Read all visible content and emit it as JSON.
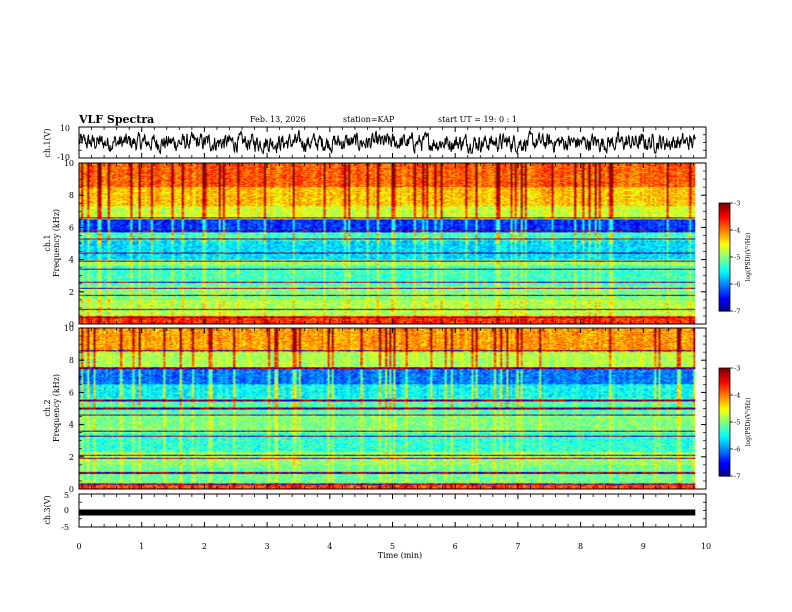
{
  "header": {
    "title": "VLF Spectra",
    "date": "Feb. 13, 2026",
    "station": "station=KAP",
    "start_ut": "start  UT =   19: 0  : 1"
  },
  "chart_data": [
    {
      "type": "line",
      "panel": "waveform-ch1",
      "ylabel": "ch.1(V)",
      "ylim": [
        -10,
        10
      ],
      "yticks": [
        "10",
        "-10"
      ],
      "xlim": [
        0,
        10
      ],
      "data_extent_min": [
        0,
        9.83
      ],
      "description_values": "random noise waveform, amplitude ~ -6..+8 V"
    },
    {
      "type": "heatmap",
      "panel": "spectrogram-ch1",
      "ylabel_line1": "ch.1",
      "ylabel_line2": "Frequency (kHz)",
      "ylim": [
        0,
        10
      ],
      "yticks": [
        "0",
        "2",
        "4",
        "6",
        "8",
        "10"
      ],
      "xlim": [
        0,
        10
      ],
      "data_extent_min": [
        0,
        9.83
      ],
      "colorbar": {
        "label": "log(PSD)(V²/Hz)",
        "range": [
          -7,
          -3
        ],
        "ticks": [
          "-3",
          "-4",
          "-5",
          "-6",
          "-7"
        ]
      },
      "bands": [
        {
          "f": [
            0.0,
            0.5
          ],
          "level": 0.82
        },
        {
          "f": [
            0.5,
            1.5
          ],
          "level": 0.55
        },
        {
          "f": [
            1.5,
            2.4
          ],
          "level": 0.5
        },
        {
          "f": [
            2.4,
            3.6
          ],
          "level": 0.44
        },
        {
          "f": [
            3.6,
            4.0
          ],
          "level": 0.52
        },
        {
          "f": [
            4.0,
            5.2
          ],
          "level": 0.34
        },
        {
          "f": [
            5.2,
            5.7
          ],
          "level": 0.44
        },
        {
          "f": [
            5.7,
            6.5
          ],
          "level": 0.17
        },
        {
          "f": [
            6.5,
            7.3
          ],
          "level": 0.58
        },
        {
          "f": [
            7.3,
            8.5
          ],
          "level": 0.68
        },
        {
          "f": [
            8.5,
            10.0
          ],
          "level": 0.78
        }
      ],
      "lines_khz": [
        0.4,
        0.9,
        1.8,
        2.2,
        2.6,
        3.4,
        3.9,
        4.4,
        5.3,
        5.8,
        6.6
      ]
    },
    {
      "type": "heatmap",
      "panel": "spectrogram-ch2",
      "ylabel_line1": "ch.2",
      "ylabel_line2": "Frequency (kHz)",
      "ylim": [
        0,
        10
      ],
      "yticks": [
        "0",
        "2",
        "4",
        "6",
        "8",
        "10"
      ],
      "xlim": [
        0,
        10
      ],
      "data_extent_min": [
        0,
        9.83
      ],
      "colorbar": {
        "label": "log(PSD)(V²/Hz)",
        "range": [
          -7,
          -3
        ],
        "ticks": [
          "-3",
          "-4",
          "-5",
          "-6",
          "-7"
        ]
      },
      "bands": [
        {
          "f": [
            0.0,
            0.4
          ],
          "level": 0.8
        },
        {
          "f": [
            0.4,
            1.5
          ],
          "level": 0.48
        },
        {
          "f": [
            1.5,
            2.3
          ],
          "level": 0.52
        },
        {
          "f": [
            2.3,
            3.5
          ],
          "level": 0.42
        },
        {
          "f": [
            3.5,
            4.6
          ],
          "level": 0.5
        },
        {
          "f": [
            4.6,
            5.6
          ],
          "level": 0.46
        },
        {
          "f": [
            5.6,
            6.5
          ],
          "level": 0.38
        },
        {
          "f": [
            6.5,
            7.5
          ],
          "level": 0.24
        },
        {
          "f": [
            7.5,
            8.5
          ],
          "level": 0.55
        },
        {
          "f": [
            8.5,
            10.0
          ],
          "level": 0.72
        }
      ],
      "lines_khz": [
        0.3,
        1.0,
        1.9,
        2.1,
        3.3,
        3.6,
        4.6,
        5.0,
        5.5,
        7.5,
        8.6
      ]
    },
    {
      "type": "line",
      "panel": "waveform-ch3",
      "ylabel": "ch.3(V)",
      "ylim": [
        -5,
        5
      ],
      "yticks": [
        "5",
        "0",
        "-5"
      ],
      "xlim": [
        0,
        10
      ],
      "data_extent_min": [
        0,
        9.83
      ],
      "level_v": -0.6,
      "description_values": "constant level near -0.6 V"
    }
  ],
  "x_axis": {
    "label": "Time (min)",
    "ticks": [
      "0",
      "1",
      "2",
      "3",
      "4",
      "5",
      "6",
      "7",
      "8",
      "9",
      "10"
    ]
  },
  "colors": {
    "ink": "#000000",
    "background": "#ffffff"
  }
}
